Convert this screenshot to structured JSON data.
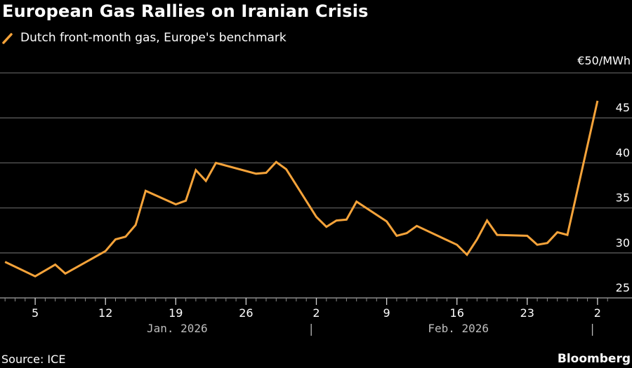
{
  "title": "European Gas Rallies on Iranian Crisis",
  "legend": {
    "icon": "line-swatch-icon",
    "label": "Dutch front-month gas, Europe's benchmark",
    "color": "#F5A33A"
  },
  "source": "Source: ICE",
  "brand": "Bloomberg",
  "chart_data": {
    "type": "line",
    "title": "European Gas Rallies on Iranian Crisis",
    "ylabel": "€/MWh",
    "unit_label": "€50/MWh",
    "ylim": [
      25,
      50
    ],
    "yticks": [
      25,
      30,
      35,
      40,
      45,
      50
    ],
    "ytick_labels": [
      "25",
      "30",
      "35",
      "40",
      "45",
      "€50/MWh"
    ],
    "grid": true,
    "legend_position": "top-left",
    "x_range_days": [
      0,
      60
    ],
    "x_day_origin": "2026-01-02",
    "xtick_days": [
      3,
      10,
      17,
      24,
      31,
      38,
      45,
      52,
      59
    ],
    "xtick_labels": [
      "5",
      "12",
      "19",
      "26",
      "2",
      "9",
      "16",
      "23",
      "2"
    ],
    "month_labels": [
      {
        "label": "Jan. 2026",
        "center_day": 17
      },
      {
        "label": "Feb. 2026",
        "center_day": 45
      }
    ],
    "month_separators_days": [
      30,
      58
    ],
    "series": [
      {
        "name": "Dutch front-month gas, Europe's benchmark",
        "color": "#F5A33A",
        "points": [
          {
            "date": "2026-01-02",
            "day": 0,
            "value": 29.0
          },
          {
            "date": "2026-01-05",
            "day": 3,
            "value": 27.4
          },
          {
            "date": "2026-01-07",
            "day": 5,
            "value": 28.7
          },
          {
            "date": "2026-01-08",
            "day": 6,
            "value": 27.7
          },
          {
            "date": "2026-01-12",
            "day": 10,
            "value": 30.2
          },
          {
            "date": "2026-01-13",
            "day": 11,
            "value": 31.5
          },
          {
            "date": "2026-01-14",
            "day": 12,
            "value": 31.8
          },
          {
            "date": "2026-01-15",
            "day": 13,
            "value": 33.1
          },
          {
            "date": "2026-01-16",
            "day": 14,
            "value": 36.9
          },
          {
            "date": "2026-01-19",
            "day": 17,
            "value": 35.4
          },
          {
            "date": "2026-01-20",
            "day": 18,
            "value": 35.8
          },
          {
            "date": "2026-01-21",
            "day": 19,
            "value": 39.2
          },
          {
            "date": "2026-01-22",
            "day": 20,
            "value": 38.0
          },
          {
            "date": "2026-01-23",
            "day": 21,
            "value": 40.0
          },
          {
            "date": "2026-01-27",
            "day": 25,
            "value": 38.8
          },
          {
            "date": "2026-01-28",
            "day": 26,
            "value": 38.9
          },
          {
            "date": "2026-01-29",
            "day": 27,
            "value": 40.1
          },
          {
            "date": "2026-01-30",
            "day": 28,
            "value": 39.3
          },
          {
            "date": "2026-02-02",
            "day": 31,
            "value": 34.0
          },
          {
            "date": "2026-02-03",
            "day": 32,
            "value": 32.9
          },
          {
            "date": "2026-02-04",
            "day": 33,
            "value": 33.6
          },
          {
            "date": "2026-02-05",
            "day": 34,
            "value": 33.7
          },
          {
            "date": "2026-02-06",
            "day": 35,
            "value": 35.7
          },
          {
            "date": "2026-02-09",
            "day": 38,
            "value": 33.5
          },
          {
            "date": "2026-02-10",
            "day": 39,
            "value": 31.9
          },
          {
            "date": "2026-02-11",
            "day": 40,
            "value": 32.2
          },
          {
            "date": "2026-02-12",
            "day": 41,
            "value": 33.0
          },
          {
            "date": "2026-02-16",
            "day": 45,
            "value": 30.9
          },
          {
            "date": "2026-02-17",
            "day": 46,
            "value": 29.8
          },
          {
            "date": "2026-02-18",
            "day": 47,
            "value": 31.5
          },
          {
            "date": "2026-02-19",
            "day": 48,
            "value": 33.6
          },
          {
            "date": "2026-02-20",
            "day": 49,
            "value": 32.0
          },
          {
            "date": "2026-02-23",
            "day": 52,
            "value": 31.9
          },
          {
            "date": "2026-02-24",
            "day": 53,
            "value": 30.9
          },
          {
            "date": "2026-02-25",
            "day": 54,
            "value": 31.1
          },
          {
            "date": "2026-02-26",
            "day": 55,
            "value": 32.3
          },
          {
            "date": "2026-02-27",
            "day": 56,
            "value": 32.0
          },
          {
            "date": "2026-03-02",
            "day": 59,
            "value": 46.9
          }
        ]
      }
    ]
  }
}
